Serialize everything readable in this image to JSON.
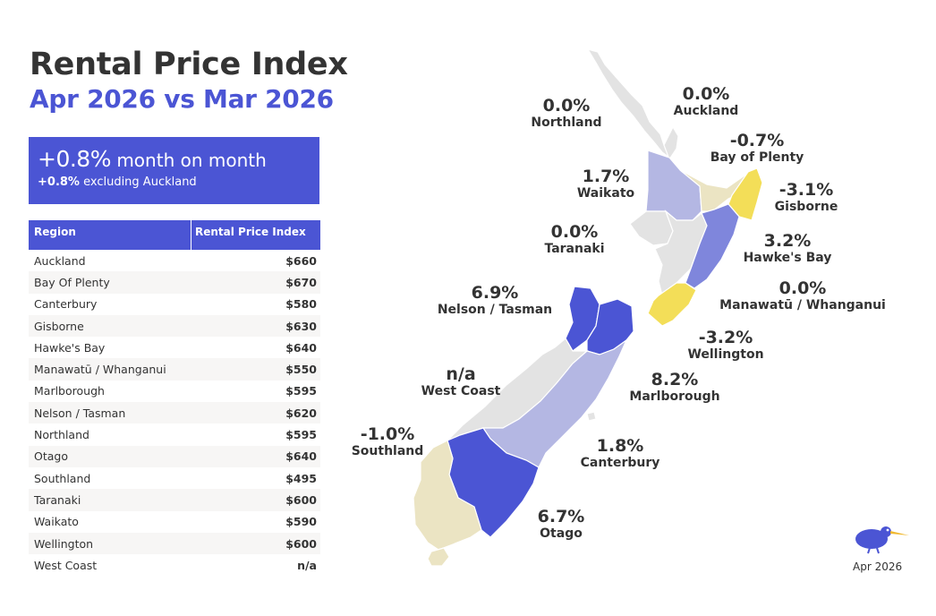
{
  "header": {
    "title": "Rental Price Index",
    "subtitle": "Apr 2026 vs Mar 2026"
  },
  "summary": {
    "main_value": "+0.8%",
    "main_text": " month on month",
    "sub_value": "+0.8%",
    "sub_text": " excluding Auckland"
  },
  "table": {
    "headers": [
      "Region",
      "Rental Price Index"
    ],
    "rows": [
      {
        "region": "Auckland",
        "value": "$660"
      },
      {
        "region": "Bay Of Plenty",
        "value": "$670"
      },
      {
        "region": "Canterbury",
        "value": "$580"
      },
      {
        "region": "Gisborne",
        "value": "$630"
      },
      {
        "region": "Hawke's Bay",
        "value": "$640"
      },
      {
        "region": "Manawatū / Whanganui",
        "value": "$550"
      },
      {
        "region": "Marlborough",
        "value": "$595"
      },
      {
        "region": "Nelson / Tasman",
        "value": "$620"
      },
      {
        "region": "Northland",
        "value": "$595"
      },
      {
        "region": "Otago",
        "value": "$640"
      },
      {
        "region": "Southland",
        "value": "$495"
      },
      {
        "region": "Taranaki",
        "value": "$600"
      },
      {
        "region": "Waikato",
        "value": "$590"
      },
      {
        "region": "Wellington",
        "value": "$600"
      },
      {
        "region": "West Coast",
        "value": "n/a"
      }
    ]
  },
  "map": {
    "colors": {
      "neutral": "#e3e3e3",
      "light_purple": "#b4b7e3",
      "mid_purple": "#7f86dc",
      "dark_purple": "#4b55d4",
      "beige": "#ebe4c3",
      "yellow": "#f3de58"
    },
    "labels": [
      {
        "id": "northland",
        "pct": "0.0%",
        "name": "Northland"
      },
      {
        "id": "auckland",
        "pct": "0.0%",
        "name": "Auckland"
      },
      {
        "id": "bay-of-plenty",
        "pct": "-0.7%",
        "name": "Bay of Plenty"
      },
      {
        "id": "waikato",
        "pct": "1.7%",
        "name": "Waikato"
      },
      {
        "id": "gisborne",
        "pct": "-3.1%",
        "name": "Gisborne"
      },
      {
        "id": "taranaki",
        "pct": "0.0%",
        "name": "Taranaki"
      },
      {
        "id": "hawkes-bay",
        "pct": "3.2%",
        "name": "Hawke's Bay"
      },
      {
        "id": "manawatu",
        "pct": "0.0%",
        "name": "Manawatū / Whanganui"
      },
      {
        "id": "nelson-tasman",
        "pct": "6.9%",
        "name": "Nelson / Tasman"
      },
      {
        "id": "wellington",
        "pct": "-3.2%",
        "name": "Wellington"
      },
      {
        "id": "west-coast",
        "pct": "n/a",
        "name": "West Coast"
      },
      {
        "id": "marlborough",
        "pct": "8.2%",
        "name": "Marlborough"
      },
      {
        "id": "southland",
        "pct": "-1.0%",
        "name": "Southland"
      },
      {
        "id": "canterbury",
        "pct": "1.8%",
        "name": "Canterbury"
      },
      {
        "id": "otago",
        "pct": "6.7%",
        "name": "Otago"
      }
    ]
  },
  "footer": {
    "logo_icon": "kiwi-bird-icon",
    "date": "Apr 2026"
  }
}
